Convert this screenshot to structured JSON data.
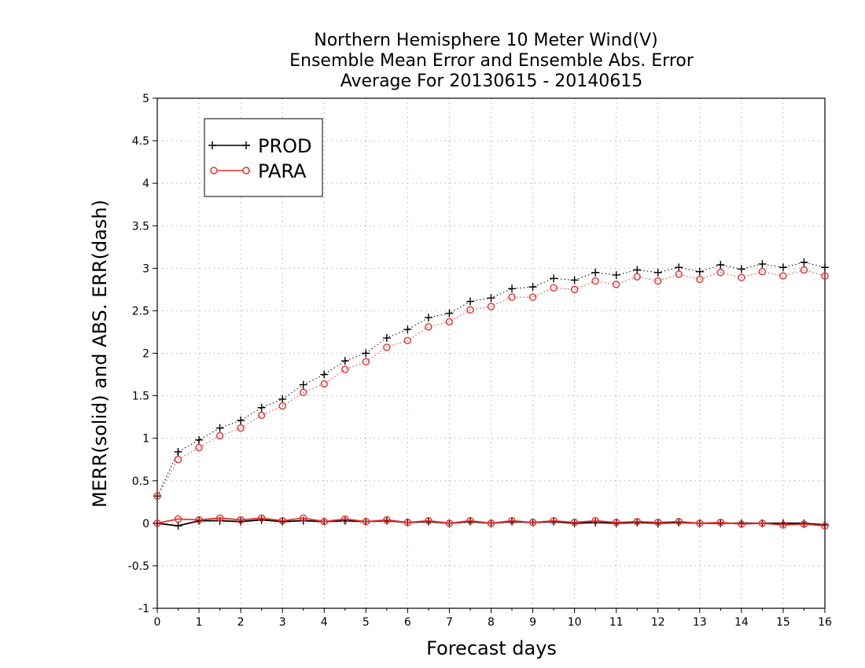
{
  "chart_data": {
    "type": "line",
    "title_lines": [
      "Northern Hemisphere 10 Meter Wind(V)",
      "Ensemble Mean Error and Ensemble Abs. Error",
      "Average For 20130615 - 20140615"
    ],
    "xlabel": "Forecast days",
    "ylabel": "MERR(solid) and ABS. ERR(dash)",
    "xlim": [
      0,
      16
    ],
    "ylim": [
      -1,
      5
    ],
    "x_ticks": [
      "0",
      "1",
      "2",
      "3",
      "4",
      "5",
      "6",
      "7",
      "8",
      "9",
      "10",
      "11",
      "12",
      "13",
      "14",
      "15",
      "16"
    ],
    "y_ticks": [
      "-1",
      "-0.5",
      "0",
      "0.5",
      "1",
      "1.5",
      "2",
      "2.5",
      "3",
      "3.5",
      "4",
      "4.5",
      "5"
    ],
    "grid": true,
    "legend": {
      "position": "top-left",
      "entries": [
        {
          "name": "PROD",
          "color": "#000000",
          "marker": "plus"
        },
        {
          "name": "PARA",
          "color": "#e8302e",
          "marker": "circle"
        }
      ]
    },
    "x": [
      0,
      0.5,
      1,
      1.5,
      2,
      2.5,
      3,
      3.5,
      4,
      4.5,
      5,
      5.5,
      6,
      6.5,
      7,
      7.5,
      8,
      8.5,
      9,
      9.5,
      10,
      10.5,
      11,
      11.5,
      12,
      12.5,
      13,
      13.5,
      14,
      14.5,
      15,
      15.5,
      16
    ],
    "series": [
      {
        "name": "PROD",
        "metric": "MERR",
        "line_style": "solid",
        "color": "#000000",
        "marker": "plus",
        "values": [
          0.0,
          -0.03,
          0.03,
          0.03,
          0.02,
          0.04,
          0.02,
          0.03,
          0.02,
          0.03,
          0.02,
          0.03,
          0.01,
          0.02,
          0.0,
          0.02,
          0.0,
          0.02,
          0.01,
          0.02,
          0.0,
          0.01,
          0.0,
          0.01,
          0.0,
          0.01,
          0.0,
          0.0,
          0.0,
          0.0,
          0.0,
          0.0,
          -0.02
        ]
      },
      {
        "name": "PARA",
        "metric": "MERR",
        "line_style": "solid",
        "color": "#e8302e",
        "marker": "circle",
        "values": [
          0.0,
          0.05,
          0.04,
          0.06,
          0.04,
          0.06,
          0.03,
          0.06,
          0.02,
          0.05,
          0.02,
          0.04,
          0.01,
          0.03,
          0.0,
          0.03,
          0.0,
          0.03,
          0.01,
          0.03,
          0.01,
          0.03,
          0.01,
          0.02,
          0.01,
          0.02,
          0.0,
          0.01,
          -0.01,
          0.0,
          -0.02,
          -0.01,
          -0.03
        ]
      },
      {
        "name": "PROD",
        "metric": "ABS. ERR",
        "line_style": "dash",
        "color": "#000000",
        "marker": "plus",
        "values": [
          0.32,
          0.84,
          0.98,
          1.12,
          1.21,
          1.36,
          1.46,
          1.63,
          1.75,
          1.91,
          2.0,
          2.18,
          2.28,
          2.42,
          2.47,
          2.61,
          2.65,
          2.76,
          2.78,
          2.88,
          2.86,
          2.95,
          2.92,
          2.98,
          2.95,
          3.01,
          2.96,
          3.04,
          2.99,
          3.05,
          3.01,
          3.07,
          3.01
        ]
      },
      {
        "name": "PARA",
        "metric": "ABS. ERR",
        "line_style": "dash",
        "color": "#e8302e",
        "marker": "circle",
        "values": [
          0.32,
          0.75,
          0.89,
          1.03,
          1.12,
          1.27,
          1.38,
          1.54,
          1.64,
          1.81,
          1.9,
          2.07,
          2.15,
          2.31,
          2.37,
          2.51,
          2.55,
          2.66,
          2.66,
          2.77,
          2.75,
          2.85,
          2.81,
          2.9,
          2.85,
          2.93,
          2.87,
          2.95,
          2.89,
          2.96,
          2.91,
          2.98,
          2.91
        ]
      }
    ]
  }
}
